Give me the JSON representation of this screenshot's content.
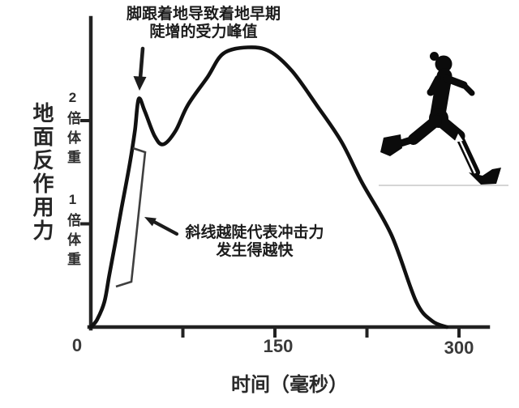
{
  "chart_data": {
    "type": "line",
    "title": "",
    "xlabel": "时间（毫秒）",
    "ylabel": "地面反作用力",
    "x_unit": "毫秒",
    "y_unit": "倍体重",
    "xlim": [
      0,
      325
    ],
    "ylim": [
      0,
      3
    ],
    "grid": false,
    "legend_position": "none",
    "x_ticks": [
      {
        "value": 0,
        "label": "0"
      },
      {
        "value": 75,
        "label": ""
      },
      {
        "value": 150,
        "label": "150"
      },
      {
        "value": 225,
        "label": ""
      },
      {
        "value": 300,
        "label": "300"
      }
    ],
    "y_ticks": [
      {
        "value": 1,
        "label": "1倍体重"
      },
      {
        "value": 2,
        "label": "2倍体重"
      }
    ],
    "series": [
      {
        "name": "vertical-ground-reaction-force",
        "points": [
          [
            0,
            0
          ],
          [
            5,
            0.07
          ],
          [
            11,
            0.24
          ],
          [
            15,
            0.5
          ],
          [
            20,
            0.82
          ],
          [
            25,
            1.15
          ],
          [
            32,
            1.6
          ],
          [
            36,
            1.91
          ],
          [
            39,
            2.21
          ],
          [
            44,
            2.09
          ],
          [
            52,
            1.85
          ],
          [
            59,
            1.77
          ],
          [
            69,
            1.9
          ],
          [
            79,
            2.15
          ],
          [
            95,
            2.42
          ],
          [
            108,
            2.65
          ],
          [
            128,
            2.71
          ],
          [
            146,
            2.67
          ],
          [
            164,
            2.48
          ],
          [
            184,
            2.15
          ],
          [
            204,
            1.8
          ],
          [
            221,
            1.4
          ],
          [
            245,
            0.89
          ],
          [
            265,
            0.25
          ],
          [
            278,
            0.06
          ],
          [
            290,
            0
          ]
        ]
      }
    ],
    "key_points": {
      "impact_peak": {
        "t_ms": 39,
        "force_bw": 2.2
      },
      "valley": {
        "t_ms": 59,
        "force_bw": 1.8
      },
      "active_peak": {
        "t_ms": 128,
        "force_bw": 2.7
      },
      "contact_end": {
        "t_ms": 290,
        "force_bw": 0
      }
    }
  },
  "annotations": {
    "impact_peak": {
      "line1": "脚跟着地导致着地早期",
      "line2": "陡增的受力峰值"
    },
    "slope": {
      "line1": "斜线越陡代表冲击力",
      "line2": "发生得越快"
    }
  },
  "icons": {
    "runner": "running-person-silhouette"
  },
  "colors": {
    "curve": "#111111",
    "axis": "#222222",
    "text": "#333333",
    "annotation": "#1c1c1c",
    "bracket": "#3f3f3f",
    "ground_line": "#cfcfcf",
    "runner": "#0b0b0b",
    "background": "#ffffff"
  }
}
